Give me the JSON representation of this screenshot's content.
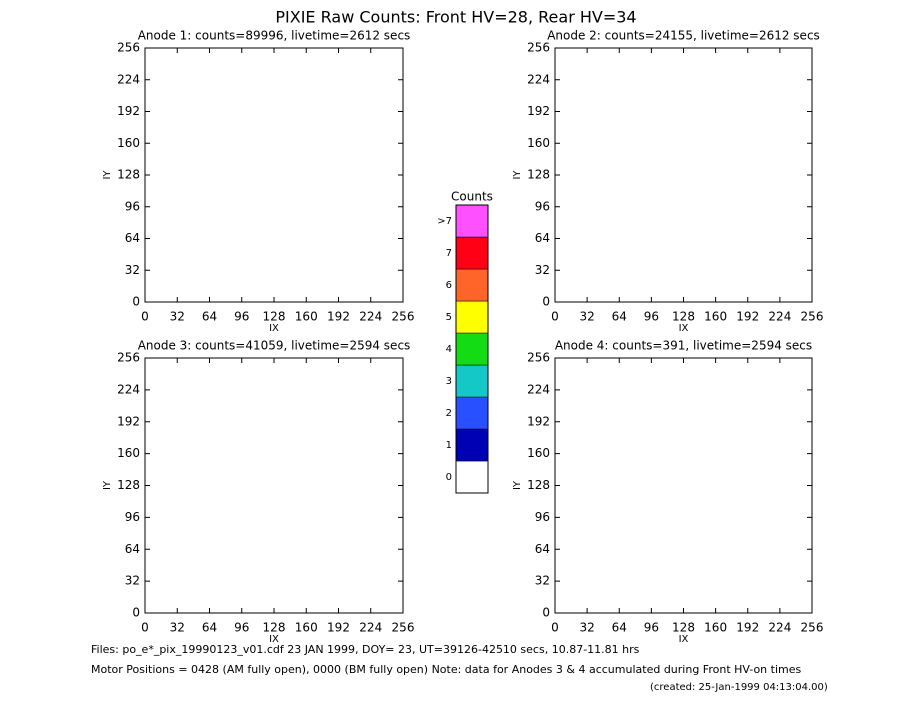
{
  "title": "PIXIE Raw Counts:  Front HV=28, Rear HV=34",
  "chart_data": [
    {
      "type": "heatmap",
      "title": "Anode 1: counts=89996, livetime=2612 secs",
      "x_label": "IX",
      "y_label": "IY",
      "xlim": [
        0,
        256
      ],
      "ylim": [
        0,
        256
      ],
      "xticks": [
        0,
        32,
        64,
        96,
        128,
        160,
        192,
        224,
        256
      ],
      "yticks": [
        0,
        32,
        64,
        96,
        128,
        160,
        192,
        224,
        256
      ]
    },
    {
      "type": "heatmap",
      "title": "Anode 2: counts=24155, livetime=2612 secs",
      "x_label": "IX",
      "y_label": "IY",
      "xlim": [
        0,
        256
      ],
      "ylim": [
        0,
        256
      ],
      "xticks": [
        0,
        32,
        64,
        96,
        128,
        160,
        192,
        224,
        256
      ],
      "yticks": [
        0,
        32,
        64,
        96,
        128,
        160,
        192,
        224,
        256
      ]
    },
    {
      "type": "heatmap",
      "title": "Anode 3: counts=41059, livetime=2594 secs",
      "x_label": "IX",
      "y_label": "IY",
      "xlim": [
        0,
        256
      ],
      "ylim": [
        0,
        256
      ],
      "xticks": [
        0,
        32,
        64,
        96,
        128,
        160,
        192,
        224,
        256
      ],
      "yticks": [
        0,
        32,
        64,
        96,
        128,
        160,
        192,
        224,
        256
      ]
    },
    {
      "type": "heatmap",
      "title": "Anode 4: counts=391, livetime=2594 secs",
      "x_label": "IX",
      "y_label": "IY",
      "xlim": [
        0,
        256
      ],
      "ylim": [
        0,
        256
      ],
      "xticks": [
        0,
        32,
        64,
        96,
        128,
        160,
        192,
        224,
        256
      ],
      "yticks": [
        0,
        32,
        64,
        96,
        128,
        160,
        192,
        224,
        256
      ]
    }
  ],
  "colorbar": {
    "title": "Counts",
    "labels": [
      "0",
      "1",
      "2",
      "3",
      "4",
      "5",
      "6",
      "7",
      ">7"
    ],
    "colors": [
      "#ffffff",
      "#0000b4",
      "#2850ff",
      "#14c8c8",
      "#14dc14",
      "#ffff00",
      "#ff6428",
      "#ff0014",
      "#ff50ff"
    ]
  },
  "footer": [
    "Files: po_e*_pix_19990123_v01.cdf    23 JAN 1999, DOY= 23, UT=39126-42510 secs, 10.87-11.81 hrs",
    "Motor Positions = 0428 (AM fully open), 0000 (BM fully open)    Note: data for Anodes 3 & 4 accumulated during Front HV-on times",
    "(created: 25-Jan-1999 04:13:04.00)"
  ]
}
